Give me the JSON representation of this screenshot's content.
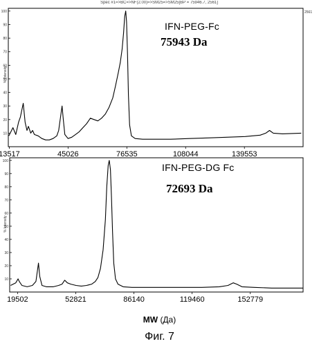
{
  "figure_caption": "Фиг. 7",
  "xaxis": {
    "symbol": "MW",
    "unit": "(Да)"
  },
  "chart_data": [
    {
      "type": "line",
      "title": "IFN-PEG-Fc",
      "annotation": "75943 Da",
      "header": "Spec #1=>BC=>NF(2.00)=>SM25=>SM25[BP = 75946.7, 2561]",
      "ylabel": "% Intensity",
      "right_label": "2561",
      "x_ticks": [
        13517,
        45026,
        76535,
        108044,
        139553
      ],
      "xlim": [
        13000,
        171000
      ],
      "y_ticks": [
        10,
        20,
        30,
        40,
        50,
        60,
        70,
        80,
        90,
        100
      ],
      "ylim": [
        0,
        102
      ],
      "series": [
        {
          "x": [
            13300,
            15500,
            17000,
            18500,
            19500,
            21000,
            22000,
            23000,
            23800,
            25000,
            26000,
            27000,
            29000,
            31000,
            33000,
            35000,
            37000,
            39000,
            40000,
            41000,
            41800,
            42500,
            43300,
            45000,
            47000,
            49000,
            51000,
            53000,
            55000,
            57000,
            59000,
            61000,
            63000,
            65000,
            67000,
            69000,
            70500,
            72000,
            73000,
            74000,
            74800,
            75400,
            75943,
            76400,
            76900,
            77400,
            78000,
            79000,
            81000,
            85000,
            90000,
            100000,
            110000,
            120000,
            130000,
            140000,
            148000,
            151000,
            153000,
            155000,
            160000,
            170000
          ],
          "y": [
            8,
            14,
            9,
            18,
            22,
            32,
            18,
            12,
            15,
            10,
            12,
            9,
            8,
            6,
            5,
            5,
            6,
            8,
            12,
            22,
            30,
            20,
            9,
            6,
            7,
            9,
            11,
            14,
            17,
            21,
            20,
            19,
            21,
            24,
            29,
            36,
            45,
            55,
            62,
            72,
            84,
            96,
            100,
            92,
            68,
            38,
            16,
            8,
            6,
            5.5,
            5.5,
            5.5,
            6,
            6.5,
            7,
            7.5,
            8.5,
            10,
            12,
            10,
            9.5,
            10
          ]
        }
      ]
    },
    {
      "type": "line",
      "title": "IFN-PEG-DG Fc",
      "annotation": "72693 Da",
      "ylabel": "% Intensity",
      "x_ticks": [
        19502,
        52821,
        86140,
        119460,
        152779
      ],
      "xlim": [
        15000,
        183000
      ],
      "y_ticks": [
        10,
        20,
        30,
        40,
        50,
        60,
        70,
        80,
        90,
        100
      ],
      "ylim": [
        0,
        102
      ],
      "series": [
        {
          "x": [
            15500,
            17000,
            18500,
            19800,
            20500,
            22000,
            25000,
            28000,
            30000,
            31500,
            32200,
            33500,
            36000,
            40000,
            43000,
            45000,
            46500,
            48000,
            50000,
            53000,
            56000,
            59000,
            62000,
            64000,
            65500,
            67000,
            68500,
            69800,
            70600,
            71400,
            72000,
            72693,
            73300,
            73900,
            74600,
            75600,
            77000,
            80000,
            85000,
            95000,
            105000,
            115000,
            125000,
            135000,
            140000,
            143000,
            145000,
            148000,
            155000,
            165000,
            175000,
            183000
          ],
          "y": [
            5,
            6,
            7,
            10,
            8,
            5,
            4,
            5,
            8,
            22,
            12,
            5,
            4,
            4,
            5,
            6,
            9,
            7,
            6,
            5,
            4.5,
            5,
            6,
            8,
            11,
            18,
            32,
            55,
            80,
            96,
            100,
            93,
            72,
            45,
            22,
            10,
            6,
            4,
            3.5,
            3.5,
            3.5,
            3.5,
            3.5,
            4,
            5,
            7,
            6,
            4,
            3.5,
            3,
            3,
            3
          ]
        }
      ]
    }
  ]
}
